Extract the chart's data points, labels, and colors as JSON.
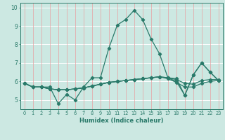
{
  "xlabel": "Humidex (Indice chaleur)",
  "background_color": "#cce8e2",
  "grid_color_white": "#ffffff",
  "grid_color_red": "#e8a0a0",
  "line_color": "#2a7a6a",
  "xlim": [
    -0.5,
    23.5
  ],
  "ylim": [
    4.5,
    10.25
  ],
  "xticks": [
    0,
    1,
    2,
    3,
    4,
    5,
    6,
    7,
    8,
    9,
    10,
    11,
    12,
    13,
    14,
    15,
    16,
    17,
    18,
    19,
    20,
    21,
    22,
    23
  ],
  "yticks": [
    5,
    6,
    7,
    8,
    9,
    10
  ],
  "series": [
    [
      5.9,
      5.7,
      5.7,
      5.7,
      4.8,
      5.3,
      5.0,
      5.7,
      6.2,
      6.2,
      7.8,
      9.05,
      9.35,
      9.85,
      9.35,
      8.3,
      7.5,
      6.2,
      6.15,
      5.25,
      6.35,
      7.0,
      6.5,
      6.05
    ],
    [
      5.9,
      5.7,
      5.7,
      5.6,
      5.55,
      5.55,
      5.6,
      5.65,
      5.75,
      5.85,
      5.95,
      6.0,
      6.05,
      6.1,
      6.15,
      6.2,
      6.25,
      6.2,
      6.1,
      5.9,
      5.85,
      6.05,
      6.1,
      6.1
    ],
    [
      5.9,
      5.7,
      5.7,
      5.6,
      5.55,
      5.55,
      5.6,
      5.65,
      5.75,
      5.85,
      5.95,
      6.0,
      6.05,
      6.1,
      6.15,
      6.2,
      6.25,
      6.15,
      5.95,
      5.7,
      5.7,
      5.9,
      6.0,
      6.05
    ],
    [
      5.9,
      5.7,
      5.7,
      5.6,
      5.55,
      5.55,
      5.6,
      5.65,
      5.75,
      5.85,
      5.95,
      6.0,
      6.05,
      6.1,
      6.15,
      6.2,
      6.25,
      6.2,
      6.0,
      5.25,
      6.35,
      7.0,
      6.5,
      6.05
    ]
  ],
  "marker_size": 2.2,
  "line_width": 0.9,
  "xlabel_fontsize": 6.0,
  "xtick_fontsize": 4.8,
  "ytick_fontsize": 5.5
}
